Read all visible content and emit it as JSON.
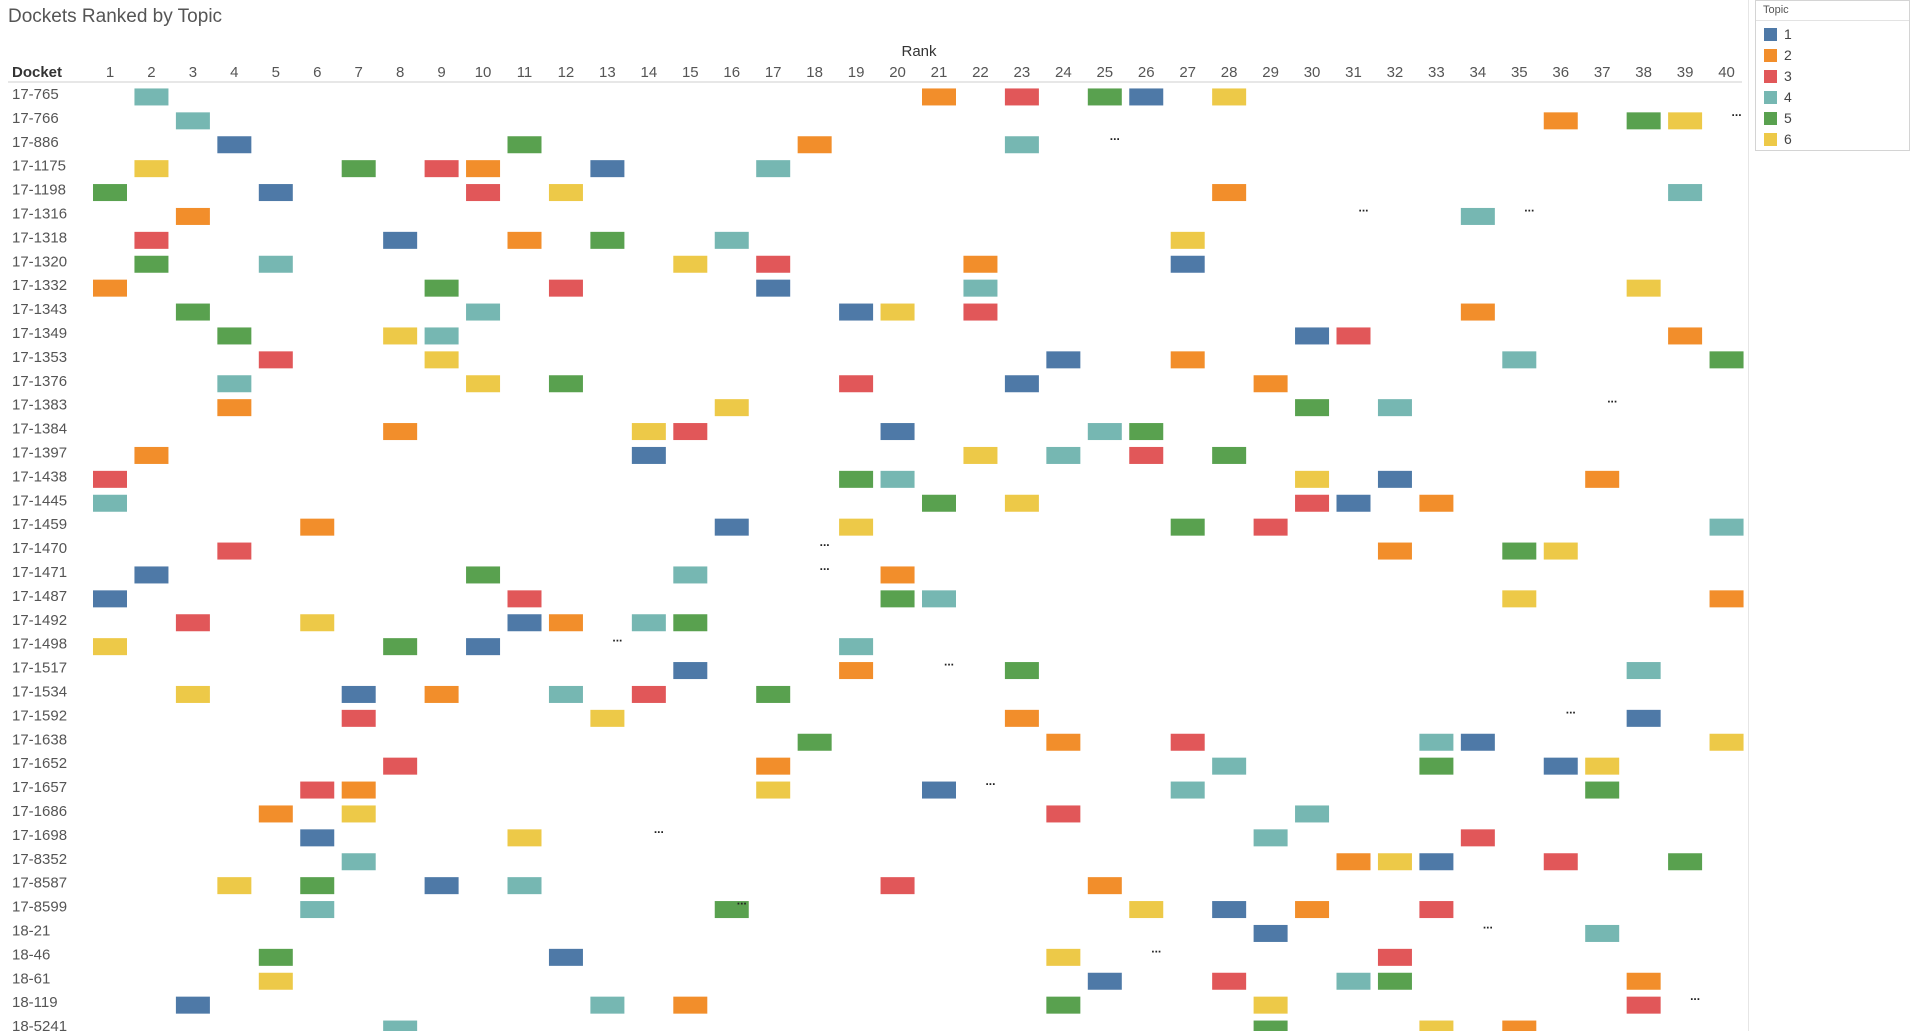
{
  "page_title": "Dockets Ranked by Topic",
  "legend": {
    "title": "Topic",
    "items": [
      {
        "label": "1",
        "color": "#4e79a7"
      },
      {
        "label": "2",
        "color": "#f28e2b"
      },
      {
        "label": "3",
        "color": "#e15759"
      },
      {
        "label": "4",
        "color": "#76b7b2"
      },
      {
        "label": "5",
        "color": "#59a14f"
      },
      {
        "label": "6",
        "color": "#edc948"
      }
    ]
  },
  "chart_data": {
    "type": "heatmap",
    "title": "Dockets Ranked by Topic",
    "xlabel": "Rank",
    "ylabel": "Docket",
    "ranks": [
      1,
      2,
      3,
      4,
      5,
      6,
      7,
      8,
      9,
      10,
      11,
      12,
      13,
      14,
      15,
      16,
      17,
      18,
      19,
      20,
      21,
      22,
      23,
      24,
      25,
      26,
      27,
      28,
      29,
      30,
      31,
      32,
      33,
      34,
      35,
      36,
      37,
      38,
      39,
      40
    ],
    "dockets": [
      "17-765",
      "17-766",
      "17-886",
      "17-1175",
      "17-1198",
      "17-1316",
      "17-1318",
      "17-1320",
      "17-1332",
      "17-1343",
      "17-1349",
      "17-1353",
      "17-1376",
      "17-1383",
      "17-1384",
      "17-1397",
      "17-1438",
      "17-1445",
      "17-1459",
      "17-1470",
      "17-1471",
      "17-1487",
      "17-1492",
      "17-1498",
      "17-1517",
      "17-1534",
      "17-1592",
      "17-1638",
      "17-1652",
      "17-1657",
      "17-1686",
      "17-1698",
      "17-8352",
      "17-8587",
      "17-8599",
      "18-21",
      "18-46",
      "18-61",
      "18-119",
      "18-5241"
    ],
    "topics": [
      "1",
      "2",
      "3",
      "4",
      "5",
      "6"
    ],
    "cells": [
      [
        "17-765",
        2,
        4
      ],
      [
        "17-765",
        21,
        2
      ],
      [
        "17-765",
        23,
        3
      ],
      [
        "17-765",
        25,
        5
      ],
      [
        "17-765",
        26,
        1
      ],
      [
        "17-765",
        28,
        6
      ],
      [
        "17-766",
        3,
        4
      ],
      [
        "17-766",
        36,
        2
      ],
      [
        "17-766",
        38,
        5
      ],
      [
        "17-766",
        39,
        6
      ],
      [
        "17-886",
        4,
        1
      ],
      [
        "17-886",
        11,
        5
      ],
      [
        "17-886",
        18,
        2
      ],
      [
        "17-886",
        23,
        4
      ],
      [
        "17-1175",
        2,
        6
      ],
      [
        "17-1175",
        7,
        5
      ],
      [
        "17-1175",
        9,
        3
      ],
      [
        "17-1175",
        10,
        2
      ],
      [
        "17-1175",
        13,
        1
      ],
      [
        "17-1175",
        17,
        4
      ],
      [
        "17-1198",
        1,
        5
      ],
      [
        "17-1198",
        5,
        1
      ],
      [
        "17-1198",
        10,
        3
      ],
      [
        "17-1198",
        12,
        6
      ],
      [
        "17-1198",
        28,
        2
      ],
      [
        "17-1198",
        39,
        4
      ],
      [
        "17-1316",
        3,
        2
      ],
      [
        "17-1316",
        34,
        4
      ],
      [
        "17-1318",
        2,
        3
      ],
      [
        "17-1318",
        8,
        1
      ],
      [
        "17-1318",
        11,
        2
      ],
      [
        "17-1318",
        13,
        5
      ],
      [
        "17-1318",
        16,
        4
      ],
      [
        "17-1318",
        27,
        6
      ],
      [
        "17-1320",
        2,
        5
      ],
      [
        "17-1320",
        5,
        4
      ],
      [
        "17-1320",
        15,
        6
      ],
      [
        "17-1320",
        17,
        3
      ],
      [
        "17-1320",
        22,
        2
      ],
      [
        "17-1320",
        27,
        1
      ],
      [
        "17-1332",
        1,
        2
      ],
      [
        "17-1332",
        9,
        5
      ],
      [
        "17-1332",
        12,
        3
      ],
      [
        "17-1332",
        17,
        1
      ],
      [
        "17-1332",
        22,
        4
      ],
      [
        "17-1332",
        38,
        6
      ],
      [
        "17-1343",
        3,
        5
      ],
      [
        "17-1343",
        10,
        4
      ],
      [
        "17-1343",
        19,
        1
      ],
      [
        "17-1343",
        20,
        6
      ],
      [
        "17-1343",
        22,
        3
      ],
      [
        "17-1343",
        34,
        2
      ],
      [
        "17-1349",
        4,
        5
      ],
      [
        "17-1349",
        8,
        6
      ],
      [
        "17-1349",
        9,
        4
      ],
      [
        "17-1349",
        30,
        1
      ],
      [
        "17-1349",
        31,
        3
      ],
      [
        "17-1349",
        39,
        2
      ],
      [
        "17-1353",
        5,
        3
      ],
      [
        "17-1353",
        9,
        6
      ],
      [
        "17-1353",
        24,
        1
      ],
      [
        "17-1353",
        27,
        2
      ],
      [
        "17-1353",
        35,
        4
      ],
      [
        "17-1353",
        40,
        5
      ],
      [
        "17-1376",
        4,
        4
      ],
      [
        "17-1376",
        10,
        6
      ],
      [
        "17-1376",
        12,
        5
      ],
      [
        "17-1376",
        19,
        3
      ],
      [
        "17-1376",
        23,
        1
      ],
      [
        "17-1376",
        29,
        2
      ],
      [
        "17-1383",
        4,
        2
      ],
      [
        "17-1383",
        16,
        6
      ],
      [
        "17-1383",
        30,
        5
      ],
      [
        "17-1383",
        32,
        4
      ],
      [
        "17-1384",
        8,
        2
      ],
      [
        "17-1384",
        14,
        6
      ],
      [
        "17-1384",
        15,
        3
      ],
      [
        "17-1384",
        20,
        1
      ],
      [
        "17-1384",
        25,
        4
      ],
      [
        "17-1384",
        26,
        5
      ],
      [
        "17-1397",
        2,
        2
      ],
      [
        "17-1397",
        14,
        1
      ],
      [
        "17-1397",
        22,
        6
      ],
      [
        "17-1397",
        24,
        4
      ],
      [
        "17-1397",
        26,
        3
      ],
      [
        "17-1397",
        28,
        5
      ],
      [
        "17-1438",
        1,
        3
      ],
      [
        "17-1438",
        19,
        5
      ],
      [
        "17-1438",
        20,
        4
      ],
      [
        "17-1438",
        30,
        6
      ],
      [
        "17-1438",
        32,
        1
      ],
      [
        "17-1438",
        37,
        2
      ],
      [
        "17-1445",
        1,
        4
      ],
      [
        "17-1445",
        21,
        5
      ],
      [
        "17-1445",
        23,
        6
      ],
      [
        "17-1445",
        30,
        3
      ],
      [
        "17-1445",
        31,
        1
      ],
      [
        "17-1445",
        33,
        2
      ],
      [
        "17-1459",
        6,
        2
      ],
      [
        "17-1459",
        16,
        1
      ],
      [
        "17-1459",
        19,
        6
      ],
      [
        "17-1459",
        27,
        5
      ],
      [
        "17-1459",
        29,
        3
      ],
      [
        "17-1459",
        40,
        4
      ],
      [
        "17-1470",
        4,
        3
      ],
      [
        "17-1470",
        32,
        2
      ],
      [
        "17-1470",
        35,
        5
      ],
      [
        "17-1470",
        36,
        6
      ],
      [
        "17-1471",
        2,
        1
      ],
      [
        "17-1471",
        10,
        5
      ],
      [
        "17-1471",
        15,
        4
      ],
      [
        "17-1471",
        20,
        2
      ],
      [
        "17-1487",
        1,
        1
      ],
      [
        "17-1487",
        11,
        3
      ],
      [
        "17-1487",
        20,
        5
      ],
      [
        "17-1487",
        21,
        4
      ],
      [
        "17-1487",
        35,
        6
      ],
      [
        "17-1487",
        40,
        2
      ],
      [
        "17-1492",
        3,
        3
      ],
      [
        "17-1492",
        6,
        6
      ],
      [
        "17-1492",
        11,
        1
      ],
      [
        "17-1492",
        12,
        2
      ],
      [
        "17-1492",
        14,
        4
      ],
      [
        "17-1492",
        15,
        5
      ],
      [
        "17-1498",
        1,
        6
      ],
      [
        "17-1498",
        8,
        5
      ],
      [
        "17-1498",
        10,
        1
      ],
      [
        "17-1498",
        19,
        4
      ],
      [
        "17-1517",
        15,
        1
      ],
      [
        "17-1517",
        19,
        2
      ],
      [
        "17-1517",
        23,
        5
      ],
      [
        "17-1517",
        38,
        4
      ],
      [
        "17-1534",
        3,
        6
      ],
      [
        "17-1534",
        7,
        1
      ],
      [
        "17-1534",
        9,
        2
      ],
      [
        "17-1534",
        12,
        4
      ],
      [
        "17-1534",
        14,
        3
      ],
      [
        "17-1534",
        17,
        5
      ],
      [
        "17-1592",
        7,
        3
      ],
      [
        "17-1592",
        13,
        6
      ],
      [
        "17-1592",
        23,
        2
      ],
      [
        "17-1592",
        38,
        1
      ],
      [
        "17-1638",
        18,
        5
      ],
      [
        "17-1638",
        24,
        2
      ],
      [
        "17-1638",
        27,
        3
      ],
      [
        "17-1638",
        33,
        4
      ],
      [
        "17-1638",
        34,
        1
      ],
      [
        "17-1638",
        40,
        6
      ],
      [
        "17-1652",
        8,
        3
      ],
      [
        "17-1652",
        17,
        2
      ],
      [
        "17-1652",
        28,
        4
      ],
      [
        "17-1652",
        33,
        5
      ],
      [
        "17-1652",
        36,
        1
      ],
      [
        "17-1652",
        37,
        6
      ],
      [
        "17-1657",
        6,
        3
      ],
      [
        "17-1657",
        7,
        2
      ],
      [
        "17-1657",
        17,
        6
      ],
      [
        "17-1657",
        21,
        1
      ],
      [
        "17-1657",
        27,
        4
      ],
      [
        "17-1657",
        37,
        5
      ],
      [
        "17-1686",
        5,
        2
      ],
      [
        "17-1686",
        7,
        6
      ],
      [
        "17-1686",
        24,
        3
      ],
      [
        "17-1686",
        30,
        4
      ],
      [
        "17-1698",
        6,
        1
      ],
      [
        "17-1698",
        11,
        6
      ],
      [
        "17-1698",
        29,
        4
      ],
      [
        "17-1698",
        34,
        3
      ],
      [
        "17-8352",
        7,
        4
      ],
      [
        "17-8352",
        31,
        2
      ],
      [
        "17-8352",
        32,
        6
      ],
      [
        "17-8352",
        33,
        1
      ],
      [
        "17-8352",
        36,
        3
      ],
      [
        "17-8352",
        39,
        5
      ],
      [
        "17-8587",
        4,
        6
      ],
      [
        "17-8587",
        6,
        5
      ],
      [
        "17-8587",
        9,
        1
      ],
      [
        "17-8587",
        11,
        4
      ],
      [
        "17-8587",
        20,
        3
      ],
      [
        "17-8587",
        25,
        2
      ],
      [
        "17-8599",
        6,
        4
      ],
      [
        "17-8599",
        16,
        5
      ],
      [
        "17-8599",
        26,
        6
      ],
      [
        "17-8599",
        28,
        1
      ],
      [
        "17-8599",
        30,
        2
      ],
      [
        "17-8599",
        33,
        3
      ],
      [
        "18-21",
        29,
        1
      ],
      [
        "18-21",
        37,
        4
      ],
      [
        "18-46",
        5,
        5
      ],
      [
        "18-46",
        12,
        1
      ],
      [
        "18-46",
        24,
        6
      ],
      [
        "18-46",
        32,
        3
      ],
      [
        "18-61",
        5,
        6
      ],
      [
        "18-61",
        25,
        1
      ],
      [
        "18-61",
        28,
        3
      ],
      [
        "18-61",
        31,
        4
      ],
      [
        "18-61",
        32,
        5
      ],
      [
        "18-61",
        38,
        2
      ],
      [
        "18-119",
        3,
        1
      ],
      [
        "18-119",
        13,
        4
      ],
      [
        "18-119",
        15,
        2
      ],
      [
        "18-119",
        24,
        5
      ],
      [
        "18-119",
        29,
        6
      ],
      [
        "18-119",
        38,
        3
      ],
      [
        "18-5241",
        8,
        4
      ],
      [
        "18-5241",
        29,
        5
      ],
      [
        "18-5241",
        33,
        6
      ],
      [
        "18-5241",
        35,
        2
      ]
    ],
    "ellipsis_markers": [
      [
        "17-766",
        40
      ],
      [
        "17-886",
        25
      ],
      [
        "17-1316",
        31
      ],
      [
        "17-1316",
        35
      ],
      [
        "17-1383",
        37
      ],
      [
        "17-1470",
        18
      ],
      [
        "17-1471",
        18
      ],
      [
        "17-1498",
        13
      ],
      [
        "17-1517",
        21
      ],
      [
        "17-1592",
        36
      ],
      [
        "17-1657",
        22
      ],
      [
        "17-1698",
        14
      ],
      [
        "17-8599",
        16
      ],
      [
        "18-21",
        34
      ],
      [
        "18-46",
        26
      ],
      [
        "18-119",
        39
      ]
    ],
    "ellipsis_text": "..."
  }
}
